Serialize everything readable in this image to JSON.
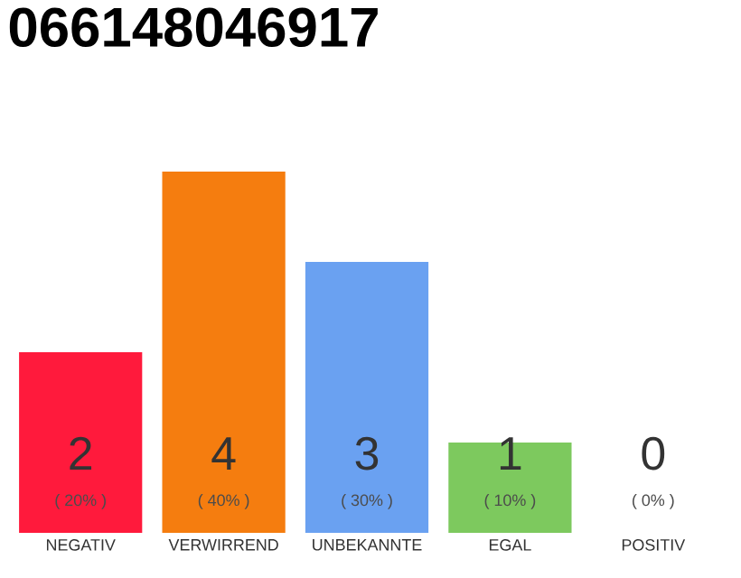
{
  "chart_data": {
    "type": "bar",
    "title": "066148046917",
    "categories": [
      "NEGATIV",
      "VERWIRREND",
      "UNBEKANNTE",
      "EGAL",
      "POSITIV"
    ],
    "values": [
      20,
      40,
      30,
      10,
      0
    ],
    "colors": [
      "#ff1a3c",
      "#f57d0f",
      "#6aa1f1",
      "#7dc95e",
      "#eeeeee"
    ],
    "value_labels": [
      "( 20% )",
      "( 40% )",
      "( 30% )",
      "( 10% )",
      "( 0% )"
    ],
    "annotations": [
      "2",
      "4",
      "3",
      "1",
      "0"
    ]
  }
}
